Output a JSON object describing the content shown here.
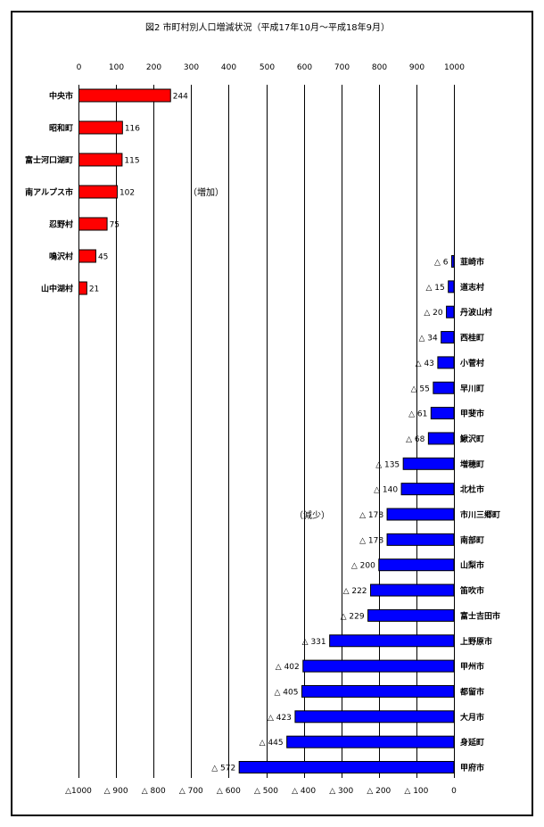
{
  "chart_data": {
    "type": "bar",
    "orientation": "horizontal",
    "title": "図2 市町村別人口増減状況（平成17年10月～平成18年9月）",
    "xlim": [
      0,
      1000
    ],
    "grid": true,
    "top_ticks": [
      "0",
      "100",
      "200",
      "300",
      "400",
      "500",
      "600",
      "700",
      "800",
      "900",
      "1000"
    ],
    "bottom_ticks": [
      "△1000",
      "△ 900",
      "△ 800",
      "△ 700",
      "△ 600",
      "△ 500",
      "△ 400",
      "△ 300",
      "△ 200",
      "△ 100",
      "0"
    ],
    "series": [
      {
        "annotation": "（増加）",
        "color": "#ff0000",
        "categories": [
          "中央市",
          "昭和町",
          "富士河口湖町",
          "南アルプス市",
          "忍野村",
          "鳴沢村",
          "山中湖村"
        ],
        "values": [
          244,
          116,
          115,
          102,
          75,
          45,
          21
        ],
        "value_labels": [
          "244",
          "116",
          "115",
          "102",
          "75",
          "45",
          "21"
        ]
      },
      {
        "annotation": "（減少）",
        "color": "#0000ff",
        "categories": [
          "韮崎市",
          "道志村",
          "丹波山村",
          "西桂町",
          "小菅村",
          "早川町",
          "甲斐市",
          "鰍沢町",
          "増穂町",
          "北杜市",
          "市川三郷町",
          "南部町",
          "山梨市",
          "笛吹市",
          "富士吉田市",
          "上野原市",
          "甲州市",
          "都留市",
          "大月市",
          "身延町",
          "甲府市"
        ],
        "values": [
          -6,
          -15,
          -20,
          -34,
          -43,
          -55,
          -61,
          -68,
          -135,
          -140,
          -178,
          -178,
          -200,
          -222,
          -229,
          -331,
          -402,
          -405,
          -423,
          -445,
          -572
        ],
        "value_labels": [
          "△ 6",
          "△ 15",
          "△ 20",
          "△ 34",
          "△ 43",
          "△ 55",
          "△ 61",
          "△ 68",
          "△ 135",
          "△ 140",
          "△ 178",
          "△ 178",
          "△ 200",
          "△ 222",
          "△ 229",
          "△ 331",
          "△ 402",
          "△ 405",
          "△ 423",
          "△ 445",
          "△ 572"
        ]
      }
    ]
  }
}
